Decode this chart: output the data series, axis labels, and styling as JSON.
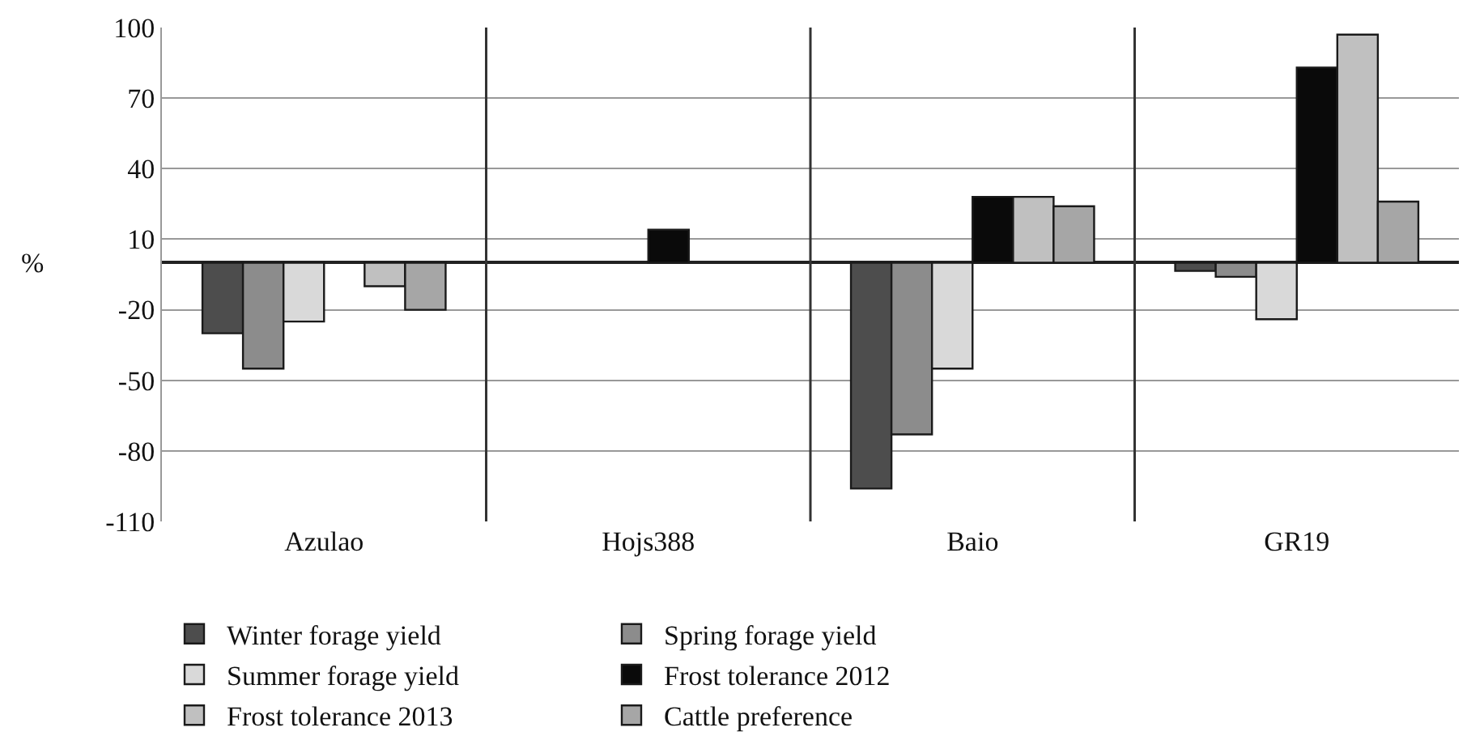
{
  "chart_data": {
    "type": "bar",
    "ylabel": "%",
    "categories": [
      "Azulao",
      "Hojs388",
      "Baio",
      "GR19"
    ],
    "series": [
      {
        "name": "Winter forage yield",
        "color": "#4d4d4d",
        "values": [
          -30,
          null,
          -96,
          -3.5
        ]
      },
      {
        "name": "Spring forage yield",
        "color": "#8c8c8c",
        "values": [
          -45,
          null,
          -73,
          -6
        ]
      },
      {
        "name": "Summer forage yield",
        "color": "#d9d9d9",
        "values": [
          -25,
          null,
          -45,
          -24
        ]
      },
      {
        "name": "Frost tolerance 2012",
        "color": "#0a0a0a",
        "values": [
          null,
          14,
          28,
          83
        ]
      },
      {
        "name": "Frost tolerance 2013",
        "color": "#c0c0c0",
        "values": [
          -10,
          null,
          28,
          97
        ]
      },
      {
        "name": "Cattle preference",
        "color": "#a6a6a6",
        "values": [
          -20,
          null,
          24,
          26
        ]
      }
    ],
    "ylim": [
      -110,
      100
    ],
    "yticks": [
      -110,
      -80,
      -50,
      -20,
      10,
      40,
      70,
      100
    ],
    "grid": true,
    "legend": "bottom"
  }
}
